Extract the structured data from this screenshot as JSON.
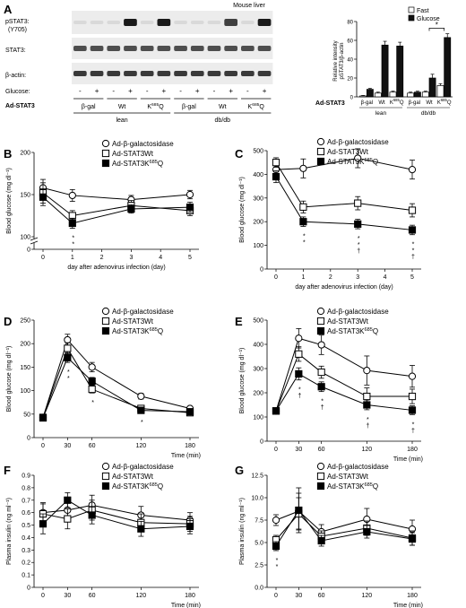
{
  "panel_a": {
    "letter": "A",
    "tissue": "Mouse liver",
    "blot_labels": [
      "pSTAT3:",
      "(Y705)",
      "STAT3:",
      "β-actin:"
    ],
    "glucose_label": "Glucose:",
    "glucose_signs": [
      "-",
      "+",
      "-",
      "+",
      "-",
      "+",
      "-",
      "+",
      "-",
      "+",
      "-",
      "+"
    ],
    "construct_label": "Ad-STAT3",
    "constructs": [
      "β-gal",
      "Wt",
      "K685Q",
      "β-gal",
      "Wt",
      "K685Q"
    ],
    "groups": [
      "lean",
      "db/db"
    ],
    "band_colors": {
      "strong": "#1a1a1a",
      "weak": "#b8b8b8",
      "bg": "#ececec"
    }
  },
  "chart_data": [
    {
      "id": "A-bar",
      "type": "bar",
      "ylabel": "Relative intensity pSTAT3/β-actin",
      "ylim": [
        0,
        80
      ],
      "yticks": [
        0,
        20,
        40,
        60,
        80
      ],
      "x_label_prefix": "Ad-STAT3",
      "categories": [
        "β-gal",
        "Wt",
        "K685Q",
        "β-gal",
        "Wt",
        "K685Q"
      ],
      "groups": [
        "lean",
        "db/db"
      ],
      "series": [
        {
          "name": "Fast",
          "fill": "#ffffff",
          "values": [
            1,
            4,
            5,
            4,
            5,
            12
          ],
          "err": [
            0.5,
            1,
            1,
            1,
            1,
            2
          ]
        },
        {
          "name": "Glucose",
          "fill": "#111111",
          "values": [
            8,
            55,
            54,
            5,
            20,
            63
          ],
          "err": [
            1,
            4,
            4,
            1,
            4,
            4
          ]
        }
      ],
      "annotations": [
        "*"
      ],
      "legend": "top-right"
    },
    {
      "id": "B",
      "type": "line",
      "letter": "B",
      "ylabel": "Blood glucose (mg dl⁻¹)",
      "xlabel": "day after adenovirus infection (day)",
      "ylim": [
        0,
        200
      ],
      "yticks": [
        0,
        100,
        150,
        200
      ],
      "axis_break": true,
      "x": [
        0,
        1,
        3,
        5
      ],
      "xticks": [
        0,
        1,
        2,
        3,
        4,
        5
      ],
      "series": [
        {
          "name": "Ad-β-galactosidase",
          "marker": "circle",
          "values": [
            158,
            149,
            144,
            150
          ],
          "err": [
            10,
            7,
            5,
            5
          ]
        },
        {
          "name": "Ad-STAT3Wt",
          "marker": "square-open",
          "values": [
            152,
            125,
            137,
            131
          ],
          "err": [
            12,
            6,
            6,
            6
          ]
        },
        {
          "name": "Ad-STAT3K685Q",
          "marker": "square-filled",
          "values": [
            147,
            116,
            133,
            135
          ],
          "err": [
            10,
            6,
            5,
            6
          ]
        }
      ],
      "star_labels": [
        {
          "x": 1,
          "text": "*"
        },
        {
          "x": 1,
          "text": "*"
        }
      ]
    },
    {
      "id": "C",
      "type": "line",
      "letter": "C",
      "ylabel": "Blood glucose (mg dl⁻¹)",
      "xlabel": "day after adenovirus infection (day)",
      "ylim": [
        0,
        500
      ],
      "yticks": [
        0,
        100,
        200,
        300,
        400,
        500
      ],
      "x": [
        0,
        1,
        3,
        5
      ],
      "xticks": [
        0,
        1,
        2,
        3,
        4,
        5
      ],
      "series": [
        {
          "name": "Ad-β-galactosidase",
          "marker": "circle",
          "values": [
            420,
            425,
            468,
            420
          ],
          "err": [
            25,
            40,
            40,
            40
          ]
        },
        {
          "name": "Ad-STAT3Wt",
          "marker": "square-open",
          "values": [
            450,
            262,
            278,
            248
          ],
          "err": [
            20,
            25,
            28,
            28
          ]
        },
        {
          "name": "Ad-STAT3K685Q",
          "marker": "square-filled",
          "values": [
            390,
            200,
            190,
            165
          ],
          "err": [
            25,
            20,
            20,
            20
          ]
        }
      ],
      "star_labels": [
        {
          "x": 1,
          "text": "*"
        },
        {
          "x": 1,
          "text": "*"
        },
        {
          "x": 3,
          "text": "*"
        },
        {
          "x": 3,
          "text": "*"
        },
        {
          "x": 3,
          "text": "†"
        },
        {
          "x": 5,
          "text": "*"
        },
        {
          "x": 5,
          "text": "*"
        },
        {
          "x": 5,
          "text": "†"
        }
      ]
    },
    {
      "id": "D",
      "type": "line",
      "letter": "D",
      "ylabel": "Blood glucose (mg dl⁻¹)",
      "xlabel": "Time (min)",
      "ylim": [
        0,
        250
      ],
      "yticks": [
        0,
        50,
        100,
        150,
        200,
        250
      ],
      "x": [
        0,
        30,
        60,
        120,
        180
      ],
      "xticks": [
        0,
        30,
        60,
        120,
        180
      ],
      "series": [
        {
          "name": "Ad-β-galactosidase",
          "marker": "circle",
          "values": [
            43,
            208,
            150,
            88,
            62
          ],
          "err": [
            3,
            12,
            10,
            6,
            4
          ]
        },
        {
          "name": "Ad-STAT3Wt",
          "marker": "square-open",
          "values": [
            43,
            190,
            103,
            62,
            53
          ],
          "err": [
            3,
            12,
            8,
            6,
            4
          ]
        },
        {
          "name": "Ad-STAT3K685Q",
          "marker": "square-filled",
          "values": [
            42,
            170,
            120,
            58,
            55
          ],
          "err": [
            3,
            10,
            8,
            5,
            4
          ]
        }
      ],
      "star_labels": [
        {
          "x": 30,
          "text": "*"
        },
        {
          "x": 30,
          "text": "*"
        },
        {
          "x": 60,
          "text": "*"
        },
        {
          "x": 120,
          "text": "*"
        }
      ]
    },
    {
      "id": "E",
      "type": "line",
      "letter": "E",
      "ylabel": "Blood glucose (mg dl⁻¹)",
      "xlabel": "Time (min)",
      "ylim": [
        0,
        500
      ],
      "yticks": [
        0,
        100,
        200,
        300,
        400,
        500
      ],
      "x": [
        0,
        30,
        60,
        120,
        180
      ],
      "xticks": [
        0,
        30,
        60,
        120,
        180
      ],
      "series": [
        {
          "name": "Ad-β-galactosidase",
          "marker": "circle",
          "values": [
            125,
            425,
            398,
            292,
            268
          ],
          "err": [
            10,
            40,
            40,
            60,
            45
          ]
        },
        {
          "name": "Ad-STAT3Wt",
          "marker": "square-open",
          "values": [
            125,
            360,
            285,
            185,
            185
          ],
          "err": [
            10,
            30,
            25,
            35,
            30
          ]
        },
        {
          "name": "Ad-STAT3K685Q",
          "marker": "square-filled",
          "values": [
            125,
            278,
            225,
            150,
            128
          ],
          "err": [
            10,
            25,
            20,
            20,
            18
          ]
        }
      ],
      "star_labels": [
        {
          "x": 30,
          "text": "*"
        },
        {
          "x": 30,
          "text": "†"
        },
        {
          "x": 60,
          "text": "*"
        },
        {
          "x": 60,
          "text": "†"
        },
        {
          "x": 120,
          "text": "*"
        },
        {
          "x": 120,
          "text": "†"
        },
        {
          "x": 180,
          "text": "*"
        },
        {
          "x": 180,
          "text": "†"
        }
      ]
    },
    {
      "id": "F",
      "type": "line",
      "letter": "F",
      "ylabel": "Plasma insulin (ng ml⁻¹)",
      "xlabel": "Time (min)",
      "ylim": [
        0,
        0.9
      ],
      "yticks": [
        0,
        0.1,
        0.2,
        0.3,
        0.4,
        0.5,
        0.6,
        0.7,
        0.8,
        0.9
      ],
      "x": [
        0,
        30,
        60,
        120,
        180
      ],
      "xticks": [
        0,
        30,
        60,
        120,
        180
      ],
      "series": [
        {
          "name": "Ad-β-galactosidase",
          "marker": "circle",
          "values": [
            0.6,
            0.62,
            0.66,
            0.58,
            0.54
          ],
          "err": [
            0.08,
            0.08,
            0.08,
            0.07,
            0.06
          ]
        },
        {
          "name": "Ad-STAT3Wt",
          "marker": "square-open",
          "values": [
            0.59,
            0.55,
            0.62,
            0.52,
            0.51
          ],
          "err": [
            0.08,
            0.08,
            0.08,
            0.07,
            0.06
          ]
        },
        {
          "name": "Ad-STAT3K685Q",
          "marker": "square-filled",
          "values": [
            0.51,
            0.7,
            0.58,
            0.47,
            0.49
          ],
          "err": [
            0.08,
            0.06,
            0.07,
            0.06,
            0.06
          ]
        }
      ],
      "star_labels": []
    },
    {
      "id": "G",
      "type": "line",
      "letter": "G",
      "ylabel": "Plasma insulin (ng ml⁻¹)",
      "xlabel": "Time (min)",
      "ylim": [
        0,
        12.5
      ],
      "yticks": [
        0,
        2.5,
        5.0,
        7.5,
        10.0,
        12.5
      ],
      "x": [
        0,
        30,
        60,
        120,
        180
      ],
      "xticks": [
        0,
        30,
        60,
        120,
        180
      ],
      "series": [
        {
          "name": "Ad-β-galactosidase",
          "marker": "circle",
          "values": [
            7.5,
            8.5,
            6.2,
            7.6,
            6.5
          ],
          "err": [
            0.6,
            2.0,
            0.8,
            1.2,
            1.0
          ]
        },
        {
          "name": "Ad-STAT3Wt",
          "marker": "square-open",
          "values": [
            5.3,
            8.2,
            5.7,
            6.6,
            5.5
          ],
          "err": [
            0.5,
            1.8,
            0.6,
            0.8,
            0.8
          ]
        },
        {
          "name": "Ad-STAT3K685Q",
          "marker": "square-filled",
          "values": [
            4.6,
            8.6,
            5.2,
            6.2,
            5.4
          ],
          "err": [
            0.5,
            2.5,
            0.6,
            0.7,
            0.7
          ]
        }
      ],
      "star_labels": [
        {
          "x": 0,
          "text": "*"
        },
        {
          "x": 0,
          "text": "*"
        }
      ]
    }
  ]
}
